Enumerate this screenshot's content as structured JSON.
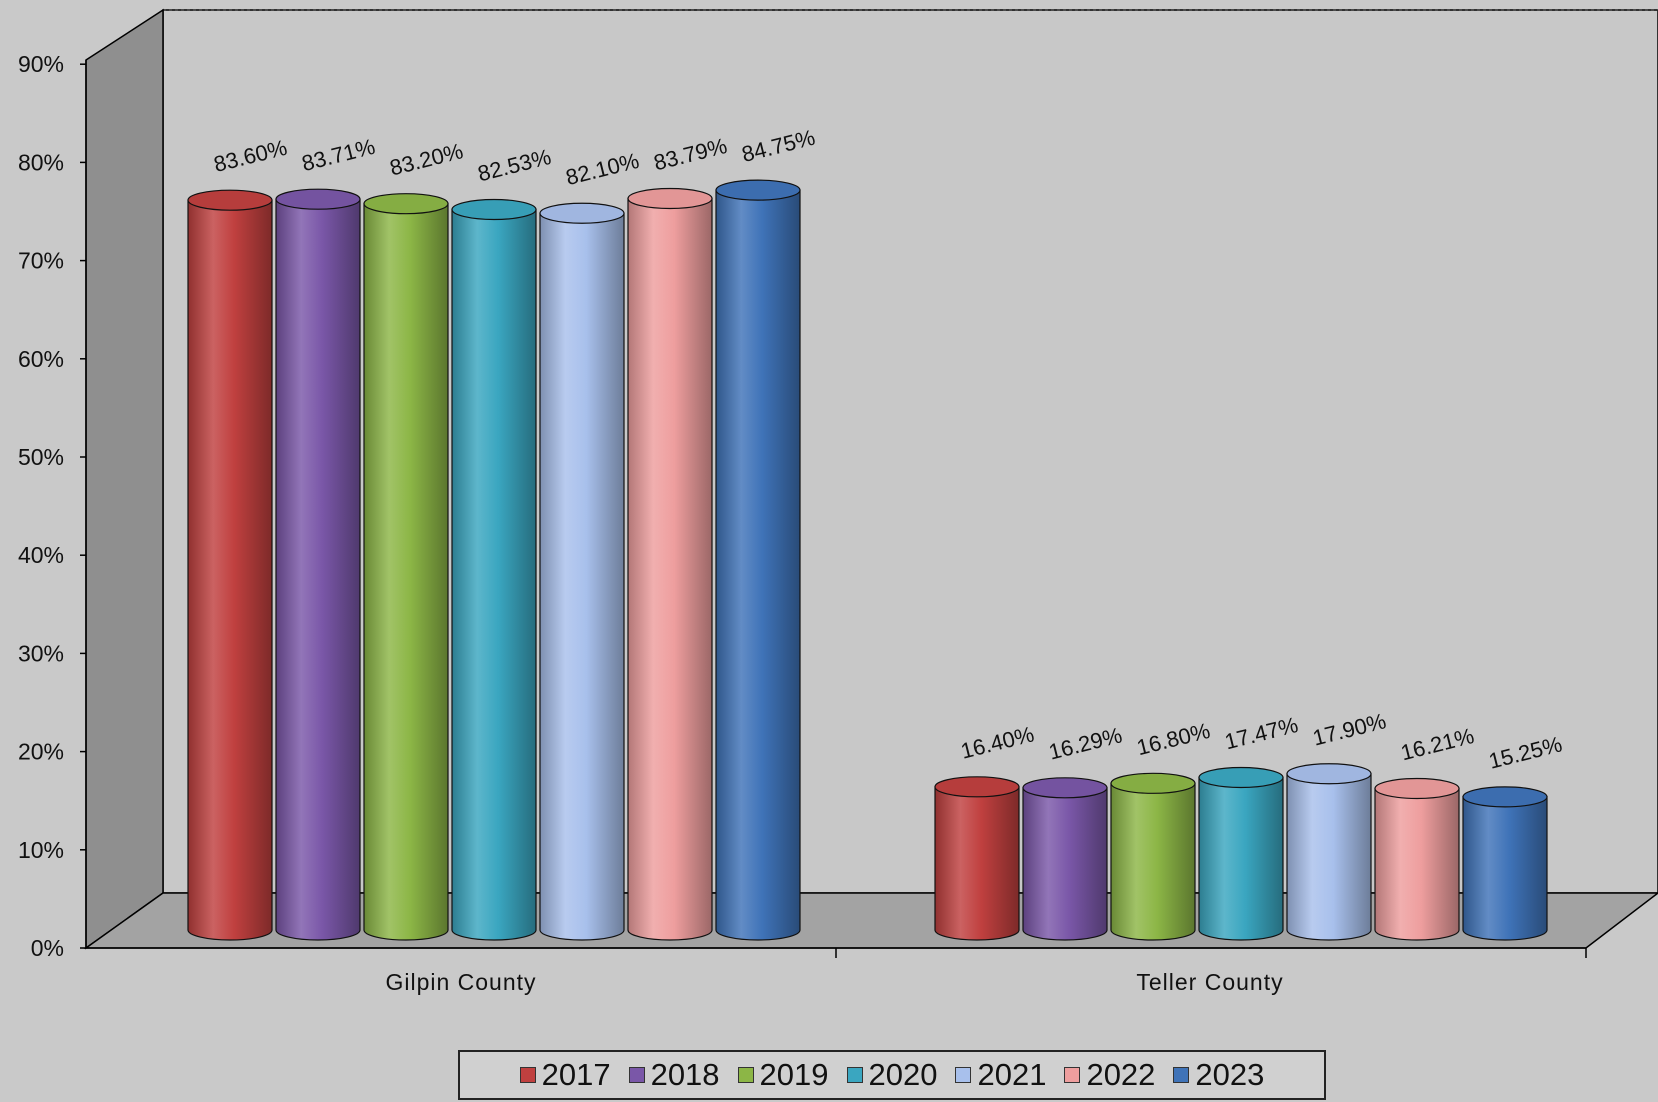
{
  "chart_data": {
    "type": "bar",
    "style": "3d-cylinder",
    "categories": [
      "Gilpin County",
      "Teller County"
    ],
    "series": [
      {
        "name": "2017",
        "color": "#c0403f",
        "values": [
          83.6,
          16.4
        ],
        "labels": [
          "83.60%",
          "16.40%"
        ]
      },
      {
        "name": "2018",
        "color": "#7a57a8",
        "values": [
          83.71,
          16.29
        ],
        "labels": [
          "83.71%",
          "16.29%"
        ]
      },
      {
        "name": "2019",
        "color": "#8cb646",
        "values": [
          83.2,
          16.8
        ],
        "labels": [
          "83.20%",
          "16.80%"
        ]
      },
      {
        "name": "2020",
        "color": "#3aa6c0",
        "values": [
          82.53,
          17.47
        ],
        "labels": [
          "82.53%",
          "17.47%"
        ]
      },
      {
        "name": "2021",
        "color": "#a8c0ec",
        "values": [
          82.1,
          17.9
        ],
        "labels": [
          "82.10%",
          "17.90%"
        ]
      },
      {
        "name": "2022",
        "color": "#ee9e9e",
        "values": [
          83.79,
          16.21
        ],
        "labels": [
          "83.79%",
          "16.21%"
        ]
      },
      {
        "name": "2023",
        "color": "#3f73b8",
        "values": [
          84.75,
          15.25
        ],
        "labels": [
          "84.75%",
          "15.25%"
        ]
      }
    ],
    "y_ticks": [
      "0%",
      "10%",
      "20%",
      "30%",
      "40%",
      "50%",
      "60%",
      "70%",
      "80%",
      "90%"
    ],
    "ylim": [
      0,
      90
    ],
    "grid": false,
    "legend_position": "bottom"
  }
}
